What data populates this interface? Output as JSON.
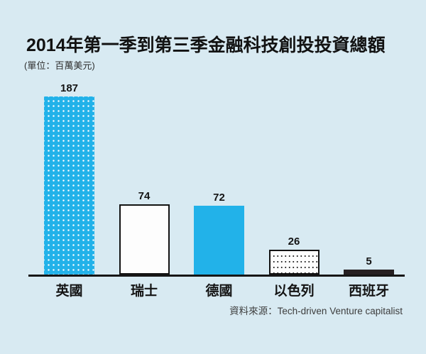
{
  "header": {
    "title": "2014年第一季到第三季金融科技創投投資總額",
    "unit_note": "(單位：百萬美元)"
  },
  "source_note": "資料來源：Tech-driven Venture capitalist",
  "colors": {
    "background": "#d8eaf2",
    "bar_blue": "#22b2e9",
    "bar_dark": "#262022",
    "bar_white": "#fdfdfd",
    "axis": "#161616",
    "text": "#141414"
  },
  "chart_data": {
    "type": "bar",
    "title": "2014年第一季到第三季金融科技創投投資總額",
    "unit": "百萬美元",
    "categories": [
      "英國",
      "瑞士",
      "德國",
      "以色列",
      "西班牙"
    ],
    "values": [
      187,
      74,
      72,
      26,
      5
    ],
    "bar_styles": [
      "dots-white-on-blue",
      "white-outline",
      "solid-blue",
      "dots-black-on-white",
      "solid-dark"
    ],
    "ylim": [
      0,
      187
    ],
    "grid": false,
    "legend": false,
    "value_labels": "above-bars",
    "source": "資料來源：Tech-driven Venture capitalist"
  }
}
